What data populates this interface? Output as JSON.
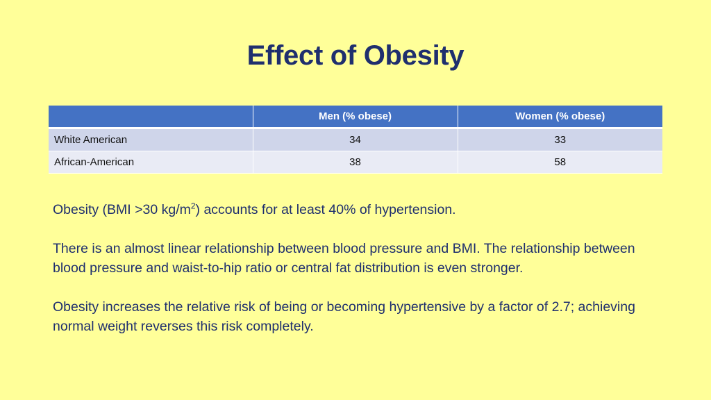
{
  "slide": {
    "title": "Effect of Obesity"
  },
  "table": {
    "headers": [
      "",
      "Men (% obese)",
      "Women (% obese)"
    ],
    "rows": [
      {
        "label": "White American",
        "men": "34",
        "women": "33"
      },
      {
        "label": "African-American",
        "men": "38",
        "women": "58"
      }
    ]
  },
  "body": {
    "p1_before": "Obesity (BMI >30 kg/m",
    "p1_sup": "2",
    "p1_after": ") accounts for at least 40% of hypertension.",
    "p2": "There is an almost linear relationship between blood pressure and BMI.  The relationship between blood pressure and waist-to-hip ratio or central fat distribution is even stronger.",
    "p3": "Obesity increases the relative risk of being or becoming hypertensive by a factor of 2.7; achieving normal weight reverses this risk completely."
  },
  "colors": {
    "background": "#ffff99",
    "title": "#1f2f6e",
    "table_header": "#4472c4",
    "row_odd": "#cfd5ea",
    "row_even": "#e9ebf5"
  }
}
